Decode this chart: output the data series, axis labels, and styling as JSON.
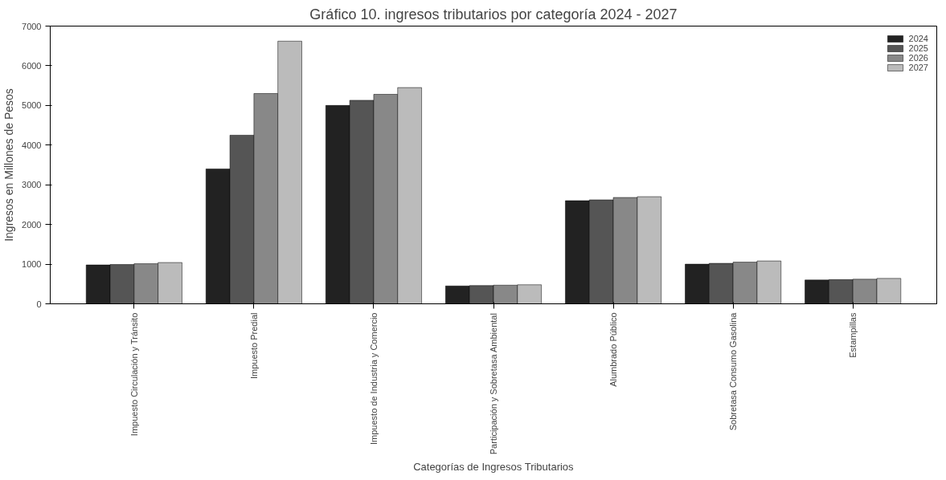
{
  "chart_data": {
    "type": "bar",
    "title": "Gráfico 10. ingresos tributarios por categoría 2024 - 2027",
    "xlabel": "Categorías de Ingresos Tributarios",
    "ylabel": "Ingresos en Millones de Pesos",
    "categories": [
      "Impuesto Circulación y Tránsito",
      "Impuesto Predial",
      "Impuesto de Industria y Comercio",
      "Participación y Sobretasa Ambiental",
      "Alumbrado Público",
      "Sobretasa Consumo Gasolina",
      "Estampillas"
    ],
    "series": [
      {
        "name": "2024",
        "color": "#222222",
        "values": [
          980,
          3400,
          5000,
          450,
          2600,
          1000,
          600
        ]
      },
      {
        "name": "2025",
        "color": "#555555",
        "values": [
          990,
          4250,
          5130,
          460,
          2620,
          1020,
          610
        ]
      },
      {
        "name": "2026",
        "color": "#888888",
        "values": [
          1010,
          5300,
          5280,
          470,
          2680,
          1050,
          620
        ]
      },
      {
        "name": "2027",
        "color": "#bbbbbb",
        "values": [
          1040,
          6620,
          5450,
          480,
          2700,
          1080,
          640
        ]
      }
    ],
    "ylim": [
      0,
      7000
    ],
    "yticks": [
      0,
      1000,
      2000,
      3000,
      4000,
      5000,
      6000,
      7000
    ],
    "grid": false,
    "legend": "top right"
  }
}
